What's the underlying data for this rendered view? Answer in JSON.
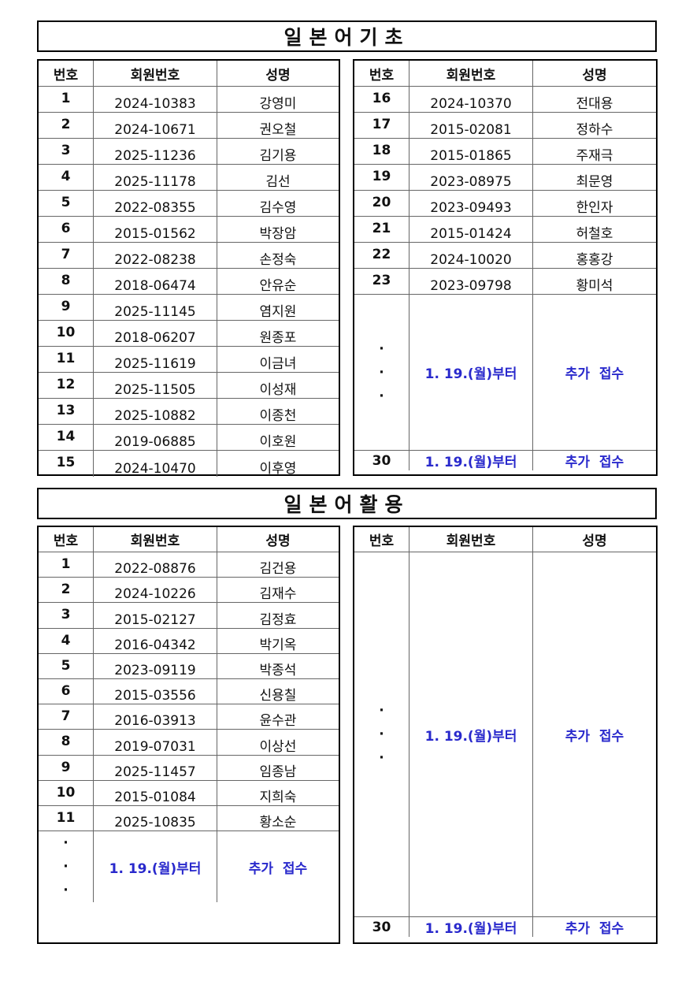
{
  "sections": [
    {
      "title": "일본어기초",
      "headers": [
        "번호",
        "회원번호",
        "성명"
      ],
      "left": {
        "rows": [
          {
            "no": "1",
            "id": "2024-10383",
            "name": "강영미"
          },
          {
            "no": "2",
            "id": "2024-10671",
            "name": "권오철"
          },
          {
            "no": "3",
            "id": "2025-11236",
            "name": "김기용"
          },
          {
            "no": "4",
            "id": "2025-11178",
            "name": "김선"
          },
          {
            "no": "5",
            "id": "2022-08355",
            "name": "김수영"
          },
          {
            "no": "6",
            "id": "2015-01562",
            "name": "박장암"
          },
          {
            "no": "7",
            "id": "2022-08238",
            "name": "손정숙"
          },
          {
            "no": "8",
            "id": "2018-06474",
            "name": "안유순"
          },
          {
            "no": "9",
            "id": "2025-11145",
            "name": "염지원"
          },
          {
            "no": "10",
            "id": "2018-06207",
            "name": "원종포"
          },
          {
            "no": "11",
            "id": "2025-11619",
            "name": "이금녀"
          },
          {
            "no": "12",
            "id": "2025-11505",
            "name": "이성재"
          },
          {
            "no": "13",
            "id": "2025-10882",
            "name": "이종천"
          },
          {
            "no": "14",
            "id": "2019-06885",
            "name": "이호원"
          },
          {
            "no": "15",
            "id": "2024-10470",
            "name": "이후영"
          }
        ]
      },
      "right": {
        "rows": [
          {
            "no": "16",
            "id": "2024-10370",
            "name": "전대용"
          },
          {
            "no": "17",
            "id": "2015-02081",
            "name": "정하수"
          },
          {
            "no": "18",
            "id": "2015-01865",
            "name": "주재극"
          },
          {
            "no": "19",
            "id": "2023-08975",
            "name": "최문영"
          },
          {
            "no": "20",
            "id": "2023-09493",
            "name": "한인자"
          },
          {
            "no": "21",
            "id": "2015-01424",
            "name": "허철호"
          },
          {
            "no": "22",
            "id": "2024-10020",
            "name": "홍홍강"
          },
          {
            "no": "23",
            "id": "2023-09798",
            "name": "황미석"
          }
        ],
        "more": {
          "dots": [
            "·",
            "·",
            "·"
          ],
          "from": "1. 19.(월)부터",
          "note": "추가  접수"
        },
        "last": {
          "no": "30",
          "from": "1. 19.(월)부터",
          "note": "추가  접수"
        }
      }
    },
    {
      "title": "일본어활용",
      "headers": [
        "번호",
        "회원번호",
        "성명"
      ],
      "left": {
        "rows": [
          {
            "no": "1",
            "id": "2022-08876",
            "name": "김건용"
          },
          {
            "no": "2",
            "id": "2024-10226",
            "name": "김재수"
          },
          {
            "no": "3",
            "id": "2015-02127",
            "name": "김정효"
          },
          {
            "no": "4",
            "id": "2016-04342",
            "name": "박기옥"
          },
          {
            "no": "5",
            "id": "2023-09119",
            "name": "박종석"
          },
          {
            "no": "6",
            "id": "2015-03556",
            "name": "신용칠"
          },
          {
            "no": "7",
            "id": "2016-03913",
            "name": "윤수관"
          },
          {
            "no": "8",
            "id": "2019-07031",
            "name": "이상선"
          },
          {
            "no": "9",
            "id": "2025-11457",
            "name": "임종남"
          },
          {
            "no": "10",
            "id": "2015-01084",
            "name": "지희숙"
          },
          {
            "no": "11",
            "id": "2025-10835",
            "name": "황소순"
          }
        ],
        "more": {
          "dots": [
            "·",
            "·",
            "·"
          ],
          "from": "1. 19.(월)부터",
          "note": "추가  접수"
        }
      },
      "right": {
        "rows": [],
        "more": {
          "dots": [
            "·",
            "·",
            "·"
          ],
          "from": "1. 19.(월)부터",
          "note": "추가  접수"
        },
        "last": {
          "no": "30",
          "from": "1. 19.(월)부터",
          "note": "추가  접수"
        }
      }
    }
  ],
  "colors": {
    "accent_blue": "#2929cc",
    "border": "#000000"
  }
}
